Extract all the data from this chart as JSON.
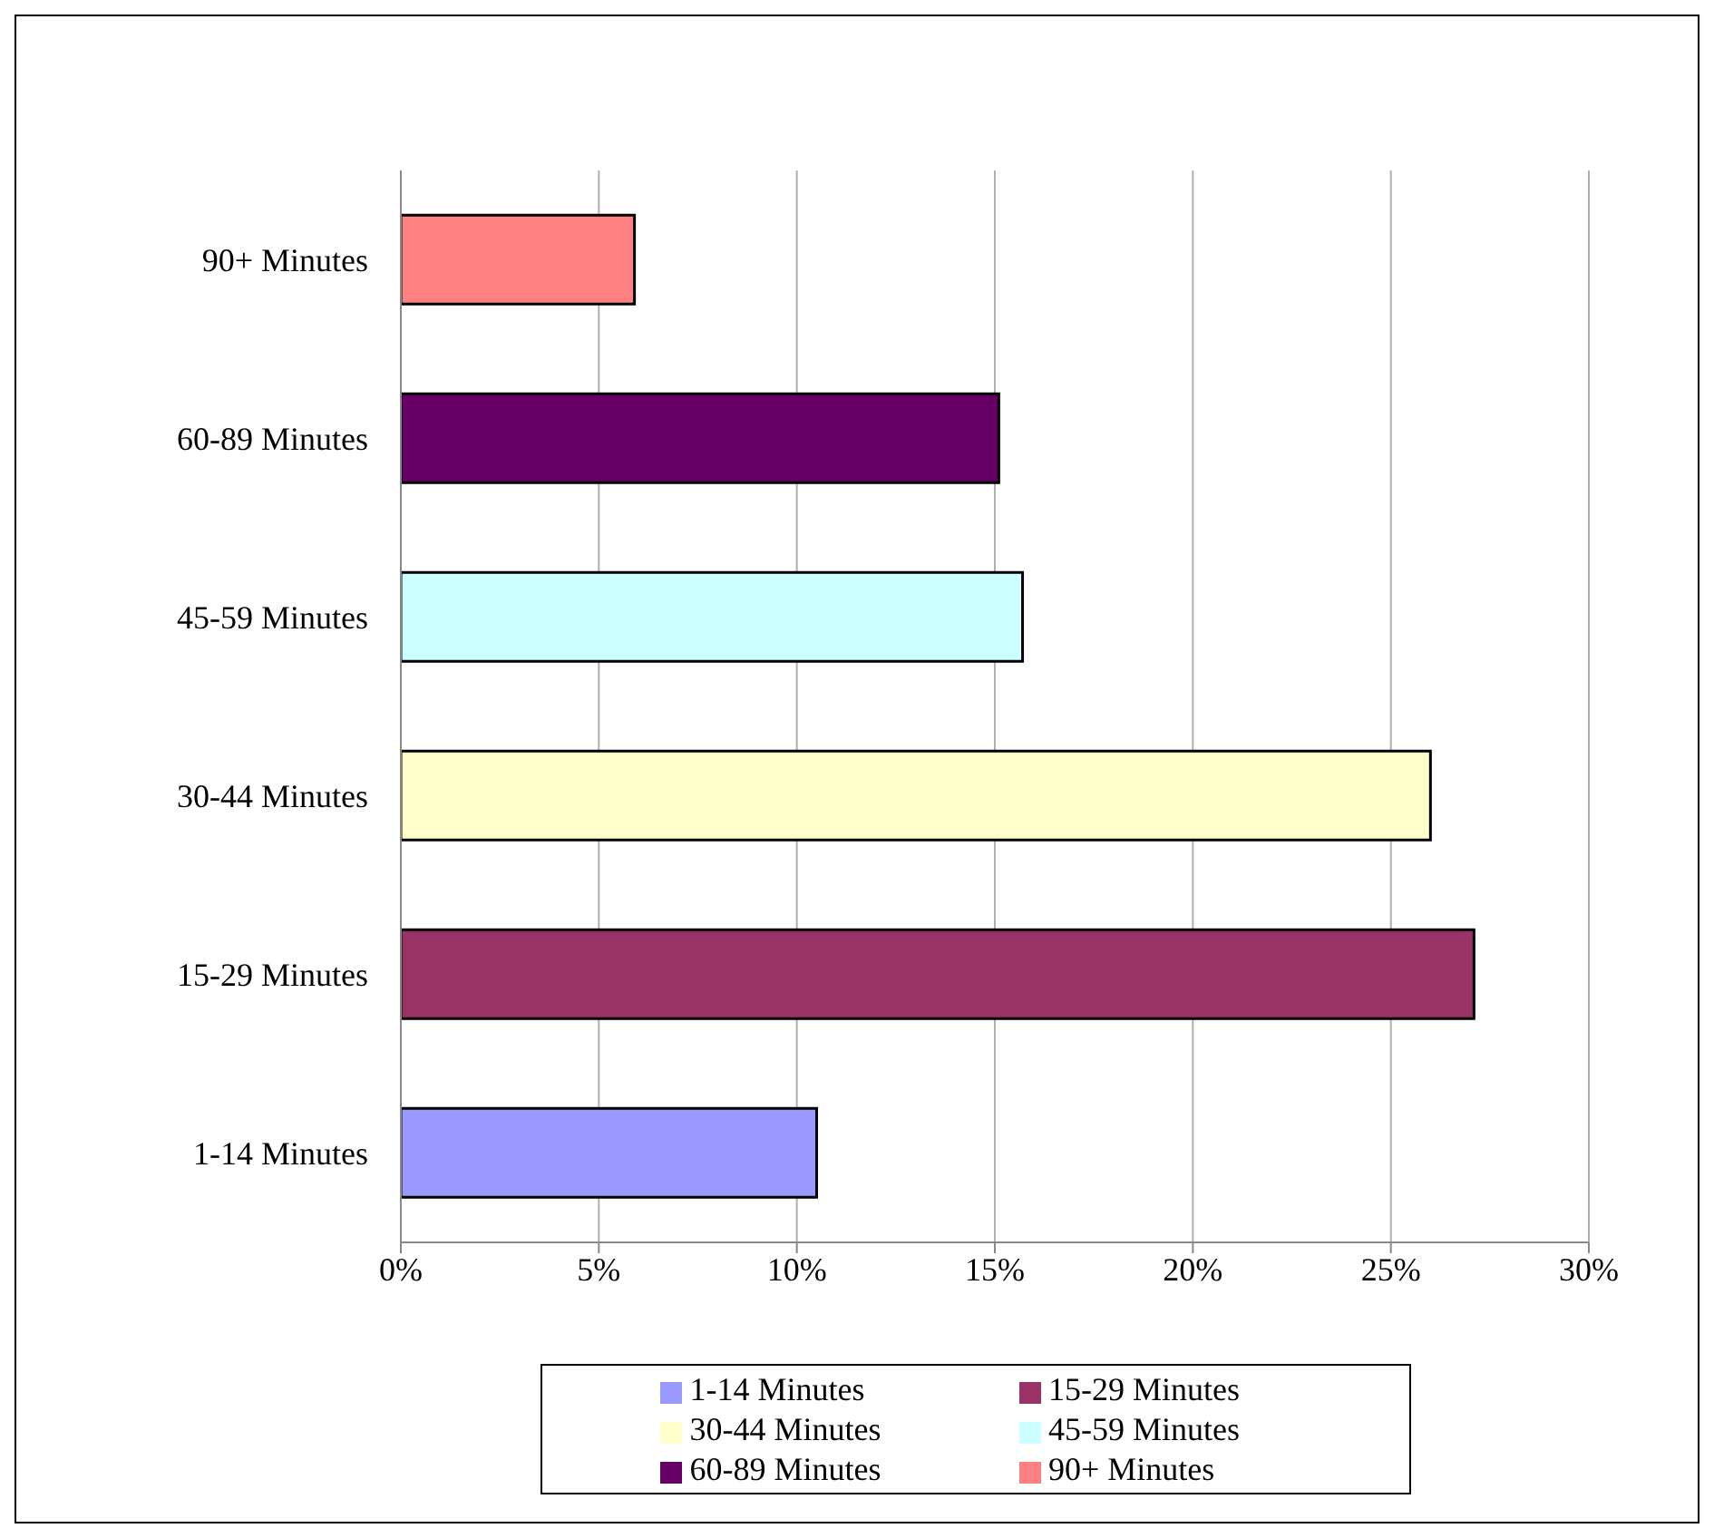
{
  "chart_data": {
    "type": "bar",
    "orientation": "horizontal",
    "stacked": true,
    "categories": [
      "90+ Minutes",
      "60-89 Minutes",
      "45-59 Minutes",
      "30-44 Minutes",
      "15-29 Minutes",
      "1-14 Minutes"
    ],
    "series": [
      {
        "name": "1-14 Minutes",
        "color": "#9999ff",
        "values": [
          null,
          null,
          null,
          null,
          null,
          10.5
        ]
      },
      {
        "name": "15-29 Minutes",
        "color": "#993366",
        "values": [
          null,
          null,
          null,
          null,
          27.1,
          null
        ]
      },
      {
        "name": "30-44 Minutes",
        "color": "#ffffcc",
        "values": [
          null,
          null,
          null,
          26.0,
          null,
          null
        ]
      },
      {
        "name": "45-59 Minutes",
        "color": "#ccffff",
        "values": [
          null,
          null,
          15.7,
          null,
          null,
          null
        ]
      },
      {
        "name": "60-89 Minutes",
        "color": "#660066",
        "values": [
          null,
          15.1,
          null,
          null,
          null,
          null
        ]
      },
      {
        "name": "90+ Minutes",
        "color": "#ff8080",
        "values": [
          5.9,
          null,
          null,
          null,
          null,
          null
        ]
      }
    ],
    "xlim": [
      0,
      30
    ],
    "xticks": [
      {
        "value": 0,
        "label": "0%"
      },
      {
        "value": 5,
        "label": "5%"
      },
      {
        "value": 10,
        "label": "10%"
      },
      {
        "value": 15,
        "label": "15%"
      },
      {
        "value": 20,
        "label": "20%"
      },
      {
        "value": 25,
        "label": "25%"
      },
      {
        "value": 30,
        "label": "30%"
      }
    ],
    "grid": "x",
    "legend": "bottom"
  }
}
